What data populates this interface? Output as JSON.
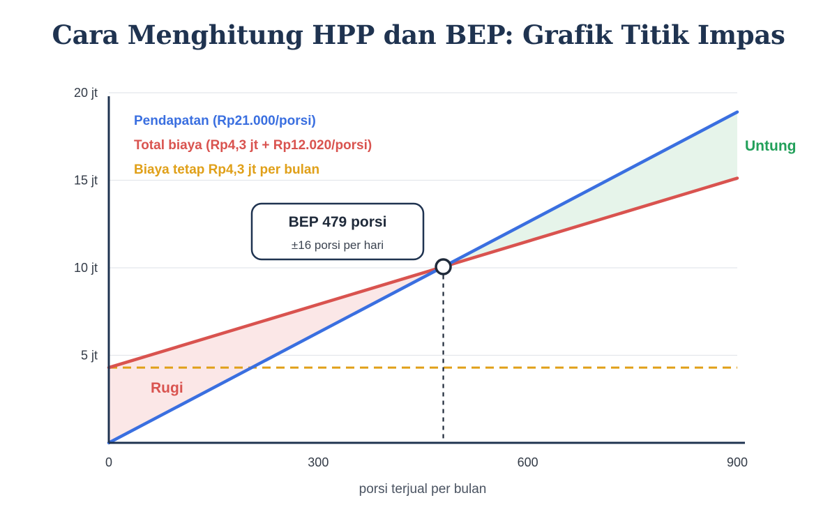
{
  "title": "Cara Menghitung HPP dan BEP: Grafik Titik Impas",
  "colors": {
    "revenue": "#3a6fe0",
    "cost": "#d9534f",
    "fixed": "#e0a019",
    "profit": "#22a05a",
    "loss": "#d9534f",
    "profit_fill": "#e6f4ea",
    "loss_fill": "#fbe7e7",
    "axis": "#1f3350",
    "grid": "#e4e7ec"
  },
  "chart_data": {
    "type": "line",
    "xlabel": "porsi terjual per bulan",
    "ylabel": "",
    "xlim": [
      0,
      900
    ],
    "ylim": [
      0,
      20
    ],
    "x_ticks": [
      {
        "value": 0,
        "label": "0"
      },
      {
        "value": 300,
        "label": "300"
      },
      {
        "value": 600,
        "label": "600"
      },
      {
        "value": 900,
        "label": "900"
      }
    ],
    "y_ticks": [
      {
        "value": 5,
        "label": "5 jt"
      },
      {
        "value": 10,
        "label": "10 jt"
      },
      {
        "value": 15,
        "label": "15 jt"
      },
      {
        "value": 20,
        "label": "20 jt"
      }
    ],
    "grid": true,
    "legend_position": "top-left",
    "series": [
      {
        "key": "revenue",
        "name": "Pendapatan (Rp21.000/porsi)",
        "x": [
          0,
          900
        ],
        "y": [
          0,
          18.9
        ]
      },
      {
        "key": "cost",
        "name": "Total biaya (Rp4,3 jt + Rp12.020/porsi)",
        "x": [
          0,
          900
        ],
        "y": [
          4.3,
          15.12
        ]
      },
      {
        "key": "fixed",
        "name": "Biaya tetap Rp4,3 jt per bulan",
        "x": [
          0,
          900
        ],
        "y": [
          4.3,
          4.3
        ]
      }
    ],
    "bep": {
      "x": 479,
      "y": 10.06,
      "label": "BEP 479 porsi",
      "sublabel": "±16 porsi per hari"
    },
    "annotations": {
      "profit": "Untung",
      "loss": "Rugi"
    }
  }
}
